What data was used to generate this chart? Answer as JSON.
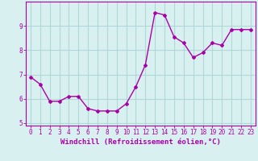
{
  "x": [
    0,
    1,
    2,
    3,
    4,
    5,
    6,
    7,
    8,
    9,
    10,
    11,
    12,
    13,
    14,
    15,
    16,
    17,
    18,
    19,
    20,
    21,
    22,
    23
  ],
  "y": [
    6.9,
    6.6,
    5.9,
    5.9,
    6.1,
    6.1,
    5.6,
    5.5,
    5.5,
    5.5,
    5.8,
    6.5,
    7.4,
    9.55,
    9.45,
    8.55,
    8.3,
    7.7,
    7.9,
    8.3,
    8.2,
    8.85,
    8.85,
    8.85
  ],
  "line_color": "#aa00aa",
  "marker": "D",
  "marker_size": 2,
  "linewidth": 1.0,
  "bg_color": "#d8f0f0",
  "grid_color": "#b0d8d8",
  "xlabel": "Windchill (Refroidissement éolien,°C)",
  "xlabel_color": "#aa00aa",
  "tick_color": "#aa00aa",
  "xlim": [
    -0.5,
    23.5
  ],
  "ylim": [
    4.9,
    10.0
  ],
  "yticks": [
    5,
    6,
    7,
    8,
    9
  ],
  "xtick_labels": [
    "0",
    "1",
    "2",
    "3",
    "4",
    "5",
    "6",
    "7",
    "8",
    "9",
    "10",
    "11",
    "12",
    "13",
    "14",
    "15",
    "16",
    "17",
    "18",
    "19",
    "20",
    "21",
    "22",
    "23"
  ],
  "spine_color": "#aa00aa",
  "axis_fontsize": 6.5,
  "tick_fontsize": 5.5
}
